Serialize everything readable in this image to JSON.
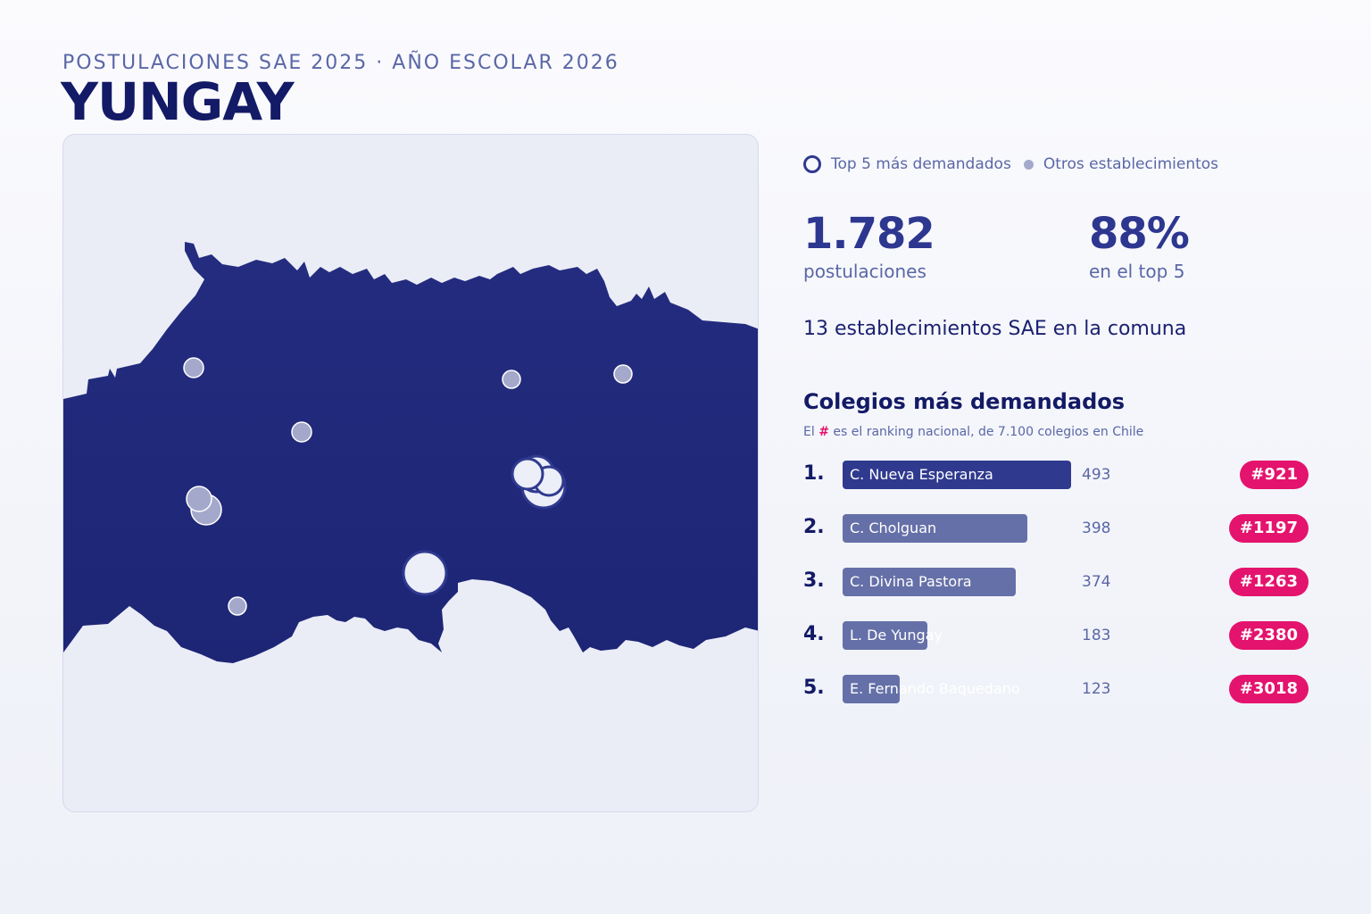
{
  "header": {
    "subtitle": "POSTULACIONES SAE 2025 · AÑO ESCOLAR 2026",
    "title": "YUNGAY"
  },
  "legend": {
    "top5_label": "Top 5 más demandados",
    "others_label": "Otros establecimientos"
  },
  "kpis": {
    "applications_value": "1.782",
    "applications_label": "postulaciones",
    "top5_share_value": "88%",
    "top5_share_label": "en el top 5"
  },
  "establishments_text": "13 establecimientos SAE en la comuna",
  "ranking": {
    "title": "Colegios más demandados",
    "note_prefix": "El",
    "note_hash": "#",
    "note_suffix": "es el ranking nacional, de 7.100 colegios en Chile",
    "max_value": 493,
    "items": [
      {
        "pos": "1.",
        "name": "C. Nueva Esperanza",
        "count": 493,
        "rank": "#921"
      },
      {
        "pos": "2.",
        "name": "C. Cholguan",
        "count": 398,
        "rank": "#1197"
      },
      {
        "pos": "3.",
        "name": "C. Divina Pastora",
        "count": 374,
        "rank": "#1263"
      },
      {
        "pos": "4.",
        "name": "L. De Yungay",
        "count": 183,
        "rank": "#2380"
      },
      {
        "pos": "5.",
        "name": "E. Fernando Baquedano",
        "count": 123,
        "rank": "#3018"
      }
    ]
  },
  "colors": {
    "map_fill": "#1f2779",
    "accent": "#2f3a8f",
    "badge": "#e4136d",
    "bar_other": "#6570a8"
  }
}
